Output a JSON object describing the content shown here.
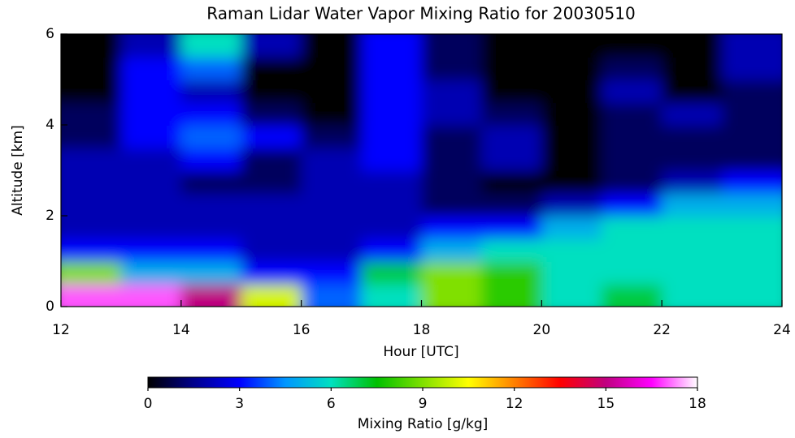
{
  "chart_data": {
    "type": "heatmap",
    "title": "Raman Lidar Water Vapor Mixing Ratio for 20030510",
    "x_label": "Hour [UTC]",
    "y_label": "Altitude [km]",
    "xlim": [
      12,
      24
    ],
    "xticks": [
      12,
      14,
      16,
      18,
      20,
      22,
      24
    ],
    "ylim": [
      0,
      6
    ],
    "yticks": [
      0,
      2,
      4,
      6
    ],
    "x": [
      12.5,
      13.5,
      14.5,
      15.5,
      16.5,
      17.5,
      18.5,
      19.5,
      20.5,
      21.5,
      22.5,
      23.5
    ],
    "y": [
      0.25,
      0.75,
      1.25,
      1.75,
      2.25,
      2.75,
      3.25,
      3.75,
      4.25,
      4.75,
      5.25,
      5.75
    ],
    "z": [
      [
        17,
        17,
        15,
        10,
        4,
        6,
        9,
        8,
        6,
        7,
        6,
        6
      ],
      [
        9,
        5,
        5,
        3,
        3,
        7,
        9,
        8,
        6,
        6,
        6,
        6
      ],
      [
        3,
        3,
        3,
        2,
        2,
        3,
        5,
        6,
        6,
        6,
        6,
        6
      ],
      [
        2,
        2,
        2,
        2,
        2,
        2,
        3,
        3,
        5,
        6,
        6,
        6
      ],
      [
        2,
        2,
        2,
        2,
        2,
        2,
        1,
        1,
        2,
        3,
        5,
        5
      ],
      [
        2,
        2,
        1,
        1,
        2,
        2,
        1,
        0,
        0,
        1,
        2,
        3
      ],
      [
        2,
        2,
        3,
        1,
        2,
        3,
        1,
        2,
        0,
        1,
        1,
        1
      ],
      [
        1,
        3,
        4,
        3,
        1,
        3,
        1,
        2,
        0,
        1,
        1,
        1
      ],
      [
        1,
        3,
        3,
        1,
        0,
        3,
        2,
        1,
        0,
        1,
        2,
        1
      ],
      [
        0,
        3,
        2,
        0,
        0,
        3,
        2,
        0,
        0,
        2,
        0,
        1
      ],
      [
        0,
        3,
        4,
        0,
        0,
        3,
        1,
        0,
        0,
        1,
        0,
        2
      ],
      [
        0,
        2,
        6,
        2,
        0,
        3,
        1,
        0,
        0,
        0,
        0,
        2
      ]
    ],
    "colorbar_label": "Mixing Ratio [g/kg]",
    "clim": [
      0,
      18
    ],
    "cticks": [
      0,
      3,
      6,
      9,
      12,
      15,
      18
    ],
    "colorscale": [
      "#000000",
      "#00008c",
      "#0000ff",
      "#0096ff",
      "#00e0c0",
      "#00c000",
      "#80e000",
      "#ffff00",
      "#ff8000",
      "#ff0000",
      "#c00080",
      "#ff00ff",
      "#ffffff"
    ]
  }
}
